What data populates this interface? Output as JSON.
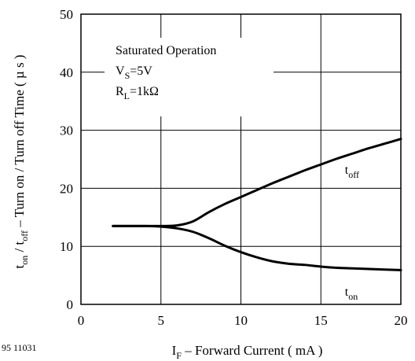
{
  "figure_id": "95 11031",
  "chart_data": {
    "type": "line",
    "xlabel": {
      "main": "I",
      "sub": "F",
      "rest": " – Forward Current ( mA )"
    },
    "ylabel": {
      "p1": "t",
      "s1": "on",
      "p2": " / t",
      "s2": "off",
      "rest": "  – Turn on / Turn off Time ( µ s )"
    },
    "xlim": [
      0,
      20
    ],
    "ylim": [
      0,
      50
    ],
    "xticks": [
      0,
      5,
      10,
      15,
      20
    ],
    "yticks": [
      0,
      10,
      20,
      30,
      40,
      50
    ],
    "grid": true,
    "annotation": {
      "line1": "Saturated Operation",
      "line2": {
        "main": "V",
        "sub": "S",
        "rest": "=5V"
      },
      "line3": {
        "main": "R",
        "sub": "L",
        "rest": "=1kΩ"
      }
    },
    "series": [
      {
        "name": {
          "main": "t",
          "sub": "off"
        },
        "x": [
          2,
          3,
          4,
          5,
          6,
          7,
          8,
          9,
          10,
          11,
          12,
          13,
          14,
          15,
          16,
          17,
          18,
          19,
          20
        ],
        "y": [
          13.5,
          13.5,
          13.5,
          13.5,
          13.6,
          14.3,
          15.9,
          17.3,
          18.5,
          19.7,
          20.9,
          22,
          23.1,
          24.1,
          25.1,
          26,
          26.9,
          27.7,
          28.5
        ]
      },
      {
        "name": {
          "main": "t",
          "sub": "on"
        },
        "x": [
          2,
          3,
          4,
          5,
          6,
          7,
          8,
          9,
          10,
          11,
          12,
          13,
          14,
          15,
          16,
          17,
          18,
          19,
          20
        ],
        "y": [
          13.5,
          13.5,
          13.5,
          13.4,
          13.1,
          12.5,
          11.4,
          10.1,
          9,
          8.1,
          7.4,
          7,
          6.8,
          6.5,
          6.3,
          6.2,
          6.1,
          6,
          5.9
        ]
      }
    ]
  }
}
